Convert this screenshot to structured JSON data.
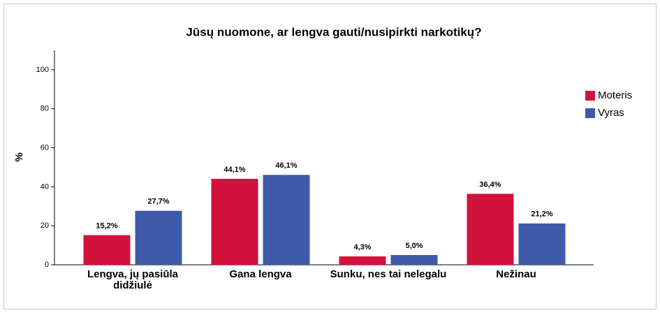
{
  "chart_data": {
    "type": "bar",
    "title": "Jūsų nuomone, ar lengva gauti/nusipirkti narkotikų?",
    "y_label": "%",
    "categories": [
      "Lengva, jų pasiūla didžiulė",
      "Gana lengva",
      "Sunku, nes tai nelegalu",
      "Nežinau"
    ],
    "series": [
      {
        "name": "Moteris",
        "color": "#d2123c",
        "values": [
          15.2,
          44.1,
          4.3,
          36.4
        ],
        "value_labels": [
          "15,2%",
          "44,1%",
          "4,3%",
          "36,4%"
        ]
      },
      {
        "name": "Vyras",
        "color": "#3f5aa9",
        "values": [
          27.7,
          46.1,
          5.0,
          21.2
        ],
        "value_labels": [
          "27,7%",
          "46,1%",
          "5,0%",
          "21,2%"
        ]
      }
    ],
    "ylim": [
      0,
      110
    ],
    "yticks": [
      0,
      20,
      40,
      60,
      80,
      100
    ],
    "legend": "right"
  }
}
